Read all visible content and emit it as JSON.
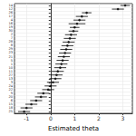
{
  "chart_data": {
    "type": "dot",
    "orientation": "horizontal",
    "x_label": "Estimated theta",
    "categories": [
      "14",
      "12",
      "26",
      "17",
      "4",
      "16",
      "19",
      "30",
      "2",
      "7",
      "28",
      "8",
      "29",
      "23",
      "21",
      "5",
      "1",
      "10",
      "11",
      "27",
      "13",
      "3",
      "24",
      "22",
      "9",
      "20",
      "6",
      "15",
      "18",
      "25"
    ],
    "values": [
      3.1,
      2.8,
      1.5,
      1.3,
      1.2,
      1.1,
      1.0,
      0.95,
      0.85,
      0.8,
      0.75,
      0.7,
      0.65,
      0.6,
      0.55,
      0.5,
      0.45,
      0.4,
      0.3,
      0.25,
      0.2,
      0.1,
      0.0,
      -0.1,
      -0.3,
      -0.4,
      -0.6,
      -0.8,
      -1.0,
      -1.1
    ],
    "lower": [
      2.9,
      2.55,
      1.3,
      1.05,
      0.95,
      0.75,
      0.8,
      0.75,
      0.6,
      0.55,
      0.5,
      0.45,
      0.4,
      0.35,
      0.3,
      0.25,
      0.2,
      0.15,
      0.05,
      0.0,
      -0.05,
      -0.15,
      -0.25,
      -0.35,
      -0.55,
      -0.65,
      -0.85,
      -1.05,
      -1.25,
      -1.35
    ],
    "upper": [
      3.3,
      3.05,
      1.7,
      1.55,
      1.45,
      1.45,
      1.2,
      1.15,
      1.1,
      1.05,
      1.0,
      0.95,
      0.9,
      0.85,
      0.8,
      0.75,
      0.7,
      0.65,
      0.55,
      0.5,
      0.45,
      0.35,
      0.25,
      0.15,
      -0.05,
      -0.15,
      -0.35,
      -0.55,
      -0.75,
      -0.85
    ],
    "xlim": [
      -1.5,
      3.4
    ],
    "xticks": [
      -1,
      0,
      1,
      2,
      3
    ],
    "grid": true,
    "color": "#000000"
  }
}
